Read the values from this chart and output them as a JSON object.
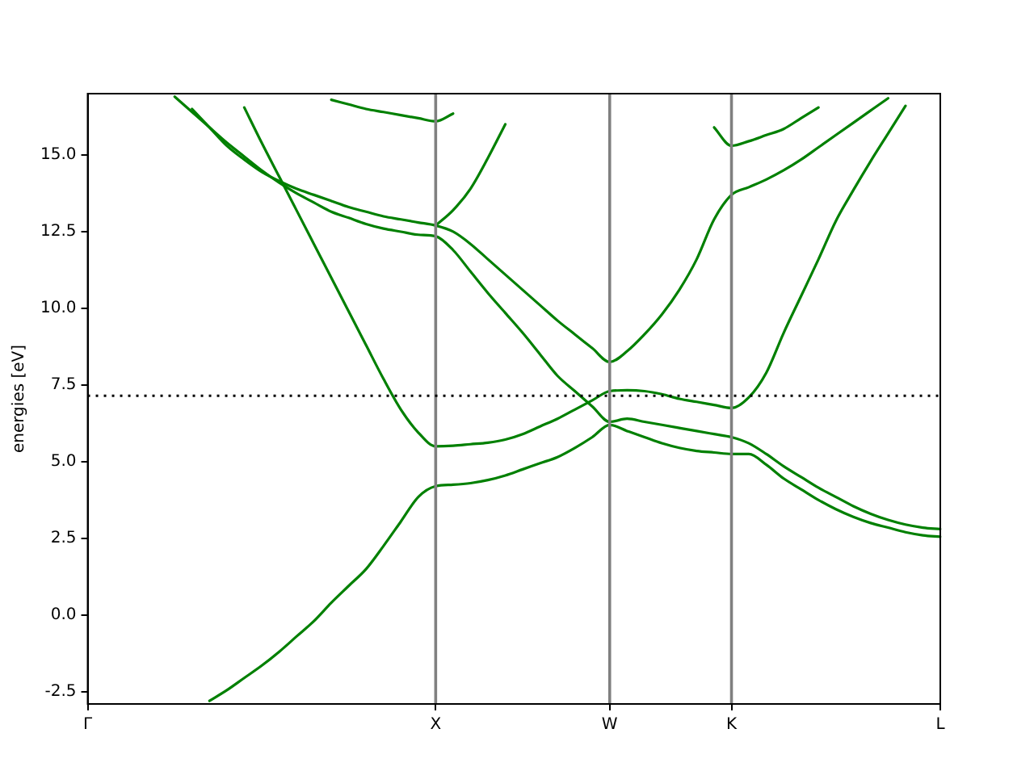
{
  "chart_data": {
    "type": "line",
    "ylabel": "energies [eV]",
    "ylim": [
      -2.9,
      17.0
    ],
    "categories": [
      "Γ",
      null,
      null,
      null,
      null,
      null,
      null,
      null,
      null,
      null,
      null,
      null,
      null,
      null,
      null,
      null,
      null,
      null,
      null,
      null,
      "X",
      null,
      null,
      null,
      null,
      null,
      null,
      null,
      null,
      null,
      "W",
      null,
      null,
      null,
      null,
      null,
      null,
      "K",
      null,
      null,
      null,
      null,
      null,
      null,
      null,
      null,
      null,
      null,
      null,
      "L"
    ],
    "yticks": [
      -2.5,
      {
        "value": 0,
        "label": "0.0"
      },
      2.5,
      {
        "value": 5,
        "label": "5.0"
      },
      7.5,
      {
        "value": 10,
        "label": "10.0"
      },
      12.5,
      {
        "value": 15,
        "label": "15.0"
      }
    ],
    "marker": "none",
    "line_style": "solid",
    "legend": false,
    "series": [
      {
        "color": "#008000",
        "values": [
          null,
          null,
          null,
          null,
          null,
          null,
          null,
          -2.8,
          -2.45,
          -2.05,
          -1.65,
          -1.2,
          -0.7,
          -0.2,
          0.4,
          0.95,
          1.5,
          2.25,
          3.05,
          3.85,
          4.2,
          4.25,
          4.3,
          4.4,
          4.55,
          4.75,
          4.95,
          5.15,
          5.45,
          5.8,
          6.2,
          6.0,
          5.8,
          5.6,
          5.45,
          5.35,
          5.3,
          5.25,
          5.25,
          4.9,
          4.45,
          4.1,
          3.75,
          3.45,
          3.2,
          3.0,
          2.85,
          2.7,
          2.6,
          2.55
        ]
      },
      {
        "color": "#008000",
        "values": [
          null,
          null,
          null,
          null,
          null,
          null,
          null,
          null,
          null,
          16.55,
          15.4,
          14.3,
          13.2,
          12.1,
          11.0,
          9.9,
          8.8,
          7.7,
          6.7,
          5.95,
          5.5,
          5.52,
          5.57,
          5.62,
          5.72,
          5.9,
          6.15,
          6.4,
          6.7,
          7.0,
          7.3,
          7.33,
          7.3,
          7.2,
          7.05,
          6.95,
          6.85,
          6.75,
          7.1,
          7.9,
          9.2,
          10.4,
          11.6,
          12.85,
          13.85,
          14.8,
          15.7,
          16.6,
          null,
          null
        ]
      },
      {
        "color": "#008000",
        "values": [
          null,
          null,
          null,
          null,
          null,
          16.9,
          16.4,
          15.9,
          15.4,
          14.95,
          14.5,
          14.1,
          13.75,
          13.45,
          13.15,
          12.95,
          12.75,
          12.6,
          12.5,
          12.4,
          12.35,
          11.9,
          11.2,
          10.5,
          9.85,
          9.2,
          8.5,
          7.8,
          7.3,
          6.8,
          6.3,
          6.4,
          6.3,
          6.2,
          6.1,
          6.0,
          5.9,
          5.8,
          5.6,
          5.25,
          4.85,
          4.5,
          4.15,
          3.85,
          3.55,
          3.3,
          3.1,
          2.95,
          2.85,
          2.8
        ]
      },
      {
        "color": "#008000",
        "values": [
          null,
          null,
          null,
          null,
          null,
          null,
          16.5,
          15.9,
          15.3,
          14.85,
          14.45,
          14.15,
          13.9,
          13.7,
          13.5,
          13.3,
          13.15,
          13.0,
          12.9,
          12.8,
          12.7,
          12.5,
          12.1,
          11.6,
          11.1,
          10.6,
          10.1,
          9.6,
          9.15,
          8.7,
          8.25,
          8.6,
          9.15,
          9.8,
          10.6,
          11.6,
          12.9,
          13.7,
          13.95,
          14.2,
          14.5,
          14.85,
          15.25,
          15.65,
          16.05,
          16.45,
          16.85,
          null,
          null,
          null
        ]
      },
      {
        "color": "#008000",
        "values": [
          null,
          null,
          null,
          null,
          null,
          null,
          null,
          null,
          null,
          null,
          null,
          null,
          null,
          null,
          null,
          null,
          null,
          null,
          null,
          null,
          12.7,
          13.2,
          13.9,
          14.9,
          16.0,
          null,
          null,
          null,
          null,
          null,
          null,
          null,
          null,
          null,
          null,
          null,
          null,
          null,
          null,
          null,
          null,
          null,
          null,
          null,
          null,
          null,
          null,
          null,
          null,
          null
        ]
      },
      {
        "color": "#008000",
        "values": [
          null,
          null,
          null,
          null,
          null,
          null,
          null,
          null,
          null,
          null,
          null,
          null,
          null,
          null,
          16.8,
          16.65,
          16.5,
          16.4,
          16.3,
          16.2,
          16.1,
          16.35,
          null,
          null,
          null,
          null,
          null,
          null,
          null,
          null,
          null,
          null,
          null,
          null,
          null,
          null,
          null,
          null,
          null,
          null,
          null,
          null,
          null,
          null,
          null,
          null,
          null,
          null,
          null,
          null
        ]
      },
      {
        "color": "#008000",
        "values": [
          null,
          null,
          null,
          null,
          null,
          null,
          null,
          null,
          null,
          null,
          null,
          null,
          null,
          null,
          null,
          null,
          null,
          null,
          null,
          null,
          null,
          null,
          null,
          null,
          null,
          null,
          null,
          null,
          null,
          null,
          null,
          null,
          null,
          null,
          null,
          null,
          15.9,
          15.3,
          15.45,
          15.65,
          15.85,
          16.2,
          16.55,
          null,
          null,
          null,
          null,
          null,
          null,
          null
        ]
      }
    ],
    "ref_lines": [
      {
        "axis": "x",
        "value": "X",
        "color": "#808080"
      },
      {
        "axis": "x",
        "value": "W",
        "color": "#808080"
      },
      {
        "axis": "x",
        "value": "K",
        "color": "#808080"
      },
      {
        "axis": "y",
        "value": 7.15,
        "color": "#000000",
        "line_style": "dotted"
      }
    ]
  }
}
